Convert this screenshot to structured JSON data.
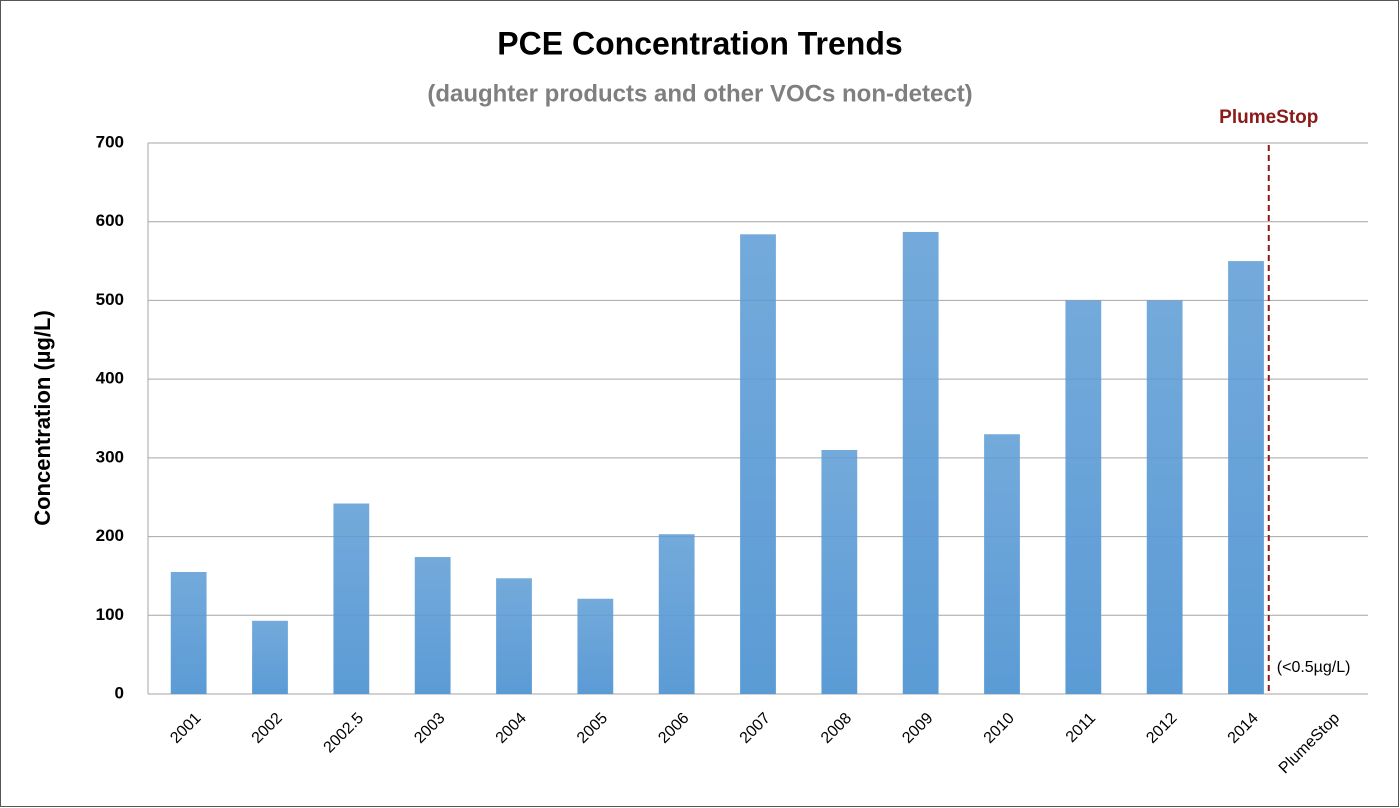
{
  "chart_data": {
    "type": "bar",
    "title": "PCE Concentration Trends",
    "subtitle": "(daughter products and other VOCs non-detect)",
    "y_label": "Concentration (µg/L)",
    "categories": [
      "2001",
      "2002",
      "2002.5",
      "2003",
      "2004",
      "2005",
      "2006",
      "2007",
      "2008",
      "2009",
      "2010",
      "2011",
      "2012",
      "2014",
      "PlumeStop"
    ],
    "values": [
      155,
      93,
      242,
      174,
      147,
      121,
      203,
      584,
      310,
      587,
      330,
      500,
      500,
      550,
      null
    ],
    "color": "#5b9bd5",
    "ylim": [
      0,
      700
    ],
    "yticks": [
      0,
      100,
      200,
      300,
      400,
      500,
      600,
      700
    ],
    "grid": true,
    "marker_label": "PlumeStop",
    "note": "(<0.5µg/L)"
  }
}
